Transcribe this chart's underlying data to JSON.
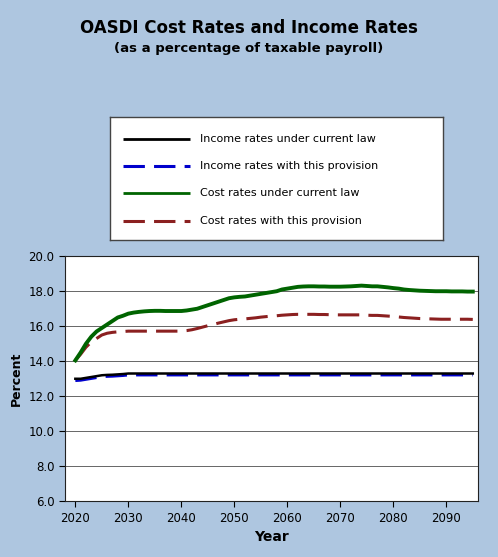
{
  "title": "OASDI Cost Rates and Income Rates",
  "subtitle": "(as a percentage of taxable payroll)",
  "xlabel": "Year",
  "ylabel": "Percent",
  "background_color": "#aec6e0",
  "plot_bg_color": "#ffffff",
  "ylim": [
    6.0,
    20.0
  ],
  "yticks": [
    6.0,
    8.0,
    10.0,
    12.0,
    14.0,
    16.0,
    18.0,
    20.0
  ],
  "xticks": [
    2020,
    2030,
    2040,
    2050,
    2060,
    2070,
    2080,
    2090
  ],
  "xlim": [
    2018,
    2096
  ],
  "years": [
    2020,
    2021,
    2022,
    2023,
    2024,
    2025,
    2026,
    2027,
    2028,
    2029,
    2030,
    2031,
    2032,
    2033,
    2034,
    2035,
    2036,
    2037,
    2038,
    2039,
    2040,
    2041,
    2042,
    2043,
    2044,
    2045,
    2046,
    2047,
    2048,
    2049,
    2050,
    2051,
    2052,
    2053,
    2054,
    2055,
    2056,
    2057,
    2058,
    2059,
    2060,
    2061,
    2062,
    2063,
    2064,
    2065,
    2066,
    2067,
    2068,
    2069,
    2070,
    2071,
    2072,
    2073,
    2074,
    2075,
    2076,
    2077,
    2078,
    2079,
    2080,
    2081,
    2082,
    2083,
    2084,
    2085,
    2086,
    2087,
    2088,
    2089,
    2090,
    2091,
    2092,
    2093,
    2094,
    2095
  ],
  "income_current_law": [
    13.0,
    13.0,
    13.05,
    13.1,
    13.15,
    13.2,
    13.22,
    13.23,
    13.25,
    13.27,
    13.3,
    13.3,
    13.3,
    13.3,
    13.3,
    13.3,
    13.3,
    13.3,
    13.3,
    13.3,
    13.3,
    13.3,
    13.3,
    13.3,
    13.3,
    13.3,
    13.3,
    13.3,
    13.3,
    13.3,
    13.3,
    13.3,
    13.3,
    13.3,
    13.3,
    13.3,
    13.3,
    13.3,
    13.3,
    13.3,
    13.3,
    13.3,
    13.3,
    13.3,
    13.3,
    13.3,
    13.3,
    13.3,
    13.3,
    13.3,
    13.3,
    13.3,
    13.3,
    13.3,
    13.3,
    13.3,
    13.3,
    13.3,
    13.3,
    13.3,
    13.3,
    13.3,
    13.3,
    13.3,
    13.3,
    13.3,
    13.3,
    13.3,
    13.3,
    13.3,
    13.3,
    13.3,
    13.3,
    13.3,
    13.3,
    13.3
  ],
  "income_provision": [
    12.9,
    12.92,
    12.97,
    13.02,
    13.07,
    13.12,
    13.14,
    13.15,
    13.17,
    13.19,
    13.22,
    13.22,
    13.22,
    13.22,
    13.22,
    13.22,
    13.22,
    13.22,
    13.22,
    13.22,
    13.22,
    13.22,
    13.22,
    13.22,
    13.22,
    13.22,
    13.22,
    13.22,
    13.22,
    13.22,
    13.22,
    13.22,
    13.22,
    13.22,
    13.22,
    13.22,
    13.22,
    13.22,
    13.22,
    13.22,
    13.22,
    13.22,
    13.22,
    13.22,
    13.22,
    13.22,
    13.22,
    13.22,
    13.22,
    13.22,
    13.22,
    13.22,
    13.22,
    13.22,
    13.22,
    13.22,
    13.22,
    13.22,
    13.22,
    13.22,
    13.22,
    13.22,
    13.22,
    13.22,
    13.22,
    13.22,
    13.22,
    13.22,
    13.22,
    13.22,
    13.22,
    13.22,
    13.22,
    13.22,
    13.22,
    13.22
  ],
  "cost_current_law": [
    14.05,
    14.5,
    15.0,
    15.4,
    15.7,
    15.9,
    16.1,
    16.3,
    16.5,
    16.6,
    16.72,
    16.78,
    16.82,
    16.85,
    16.87,
    16.88,
    16.88,
    16.87,
    16.87,
    16.87,
    16.87,
    16.9,
    16.95,
    17.0,
    17.1,
    17.2,
    17.3,
    17.4,
    17.5,
    17.6,
    17.65,
    17.68,
    17.7,
    17.75,
    17.8,
    17.85,
    17.9,
    17.95,
    18.0,
    18.1,
    18.15,
    18.2,
    18.25,
    18.27,
    18.28,
    18.28,
    18.27,
    18.27,
    18.26,
    18.26,
    18.26,
    18.27,
    18.28,
    18.3,
    18.32,
    18.3,
    18.28,
    18.28,
    18.25,
    18.22,
    18.18,
    18.15,
    18.1,
    18.07,
    18.05,
    18.03,
    18.02,
    18.01,
    18.0,
    18.0,
    18.0,
    17.99,
    17.99,
    17.99,
    17.98,
    17.98
  ],
  "cost_provision": [
    14.05,
    14.4,
    14.8,
    15.1,
    15.3,
    15.5,
    15.6,
    15.65,
    15.68,
    15.7,
    15.72,
    15.72,
    15.72,
    15.72,
    15.72,
    15.72,
    15.72,
    15.72,
    15.72,
    15.72,
    15.72,
    15.75,
    15.8,
    15.87,
    15.95,
    16.03,
    16.1,
    16.18,
    16.25,
    16.32,
    16.37,
    16.4,
    16.42,
    16.45,
    16.48,
    16.52,
    16.55,
    16.58,
    16.6,
    16.63,
    16.65,
    16.67,
    16.68,
    16.68,
    16.68,
    16.68,
    16.67,
    16.67,
    16.66,
    16.65,
    16.65,
    16.65,
    16.65,
    16.65,
    16.65,
    16.63,
    16.62,
    16.62,
    16.6,
    16.58,
    16.56,
    16.53,
    16.5,
    16.48,
    16.46,
    16.44,
    16.43,
    16.42,
    16.41,
    16.4,
    16.4,
    16.4,
    16.4,
    16.4,
    16.4,
    16.39
  ],
  "income_current_law_color": "#000000",
  "income_provision_color": "#0000cc",
  "cost_current_law_color": "#006400",
  "cost_provision_color": "#8b2020",
  "legend_labels": [
    "Income rates under current law",
    "Income rates with this provision",
    "Cost rates under current law",
    "Cost rates with this provision"
  ]
}
